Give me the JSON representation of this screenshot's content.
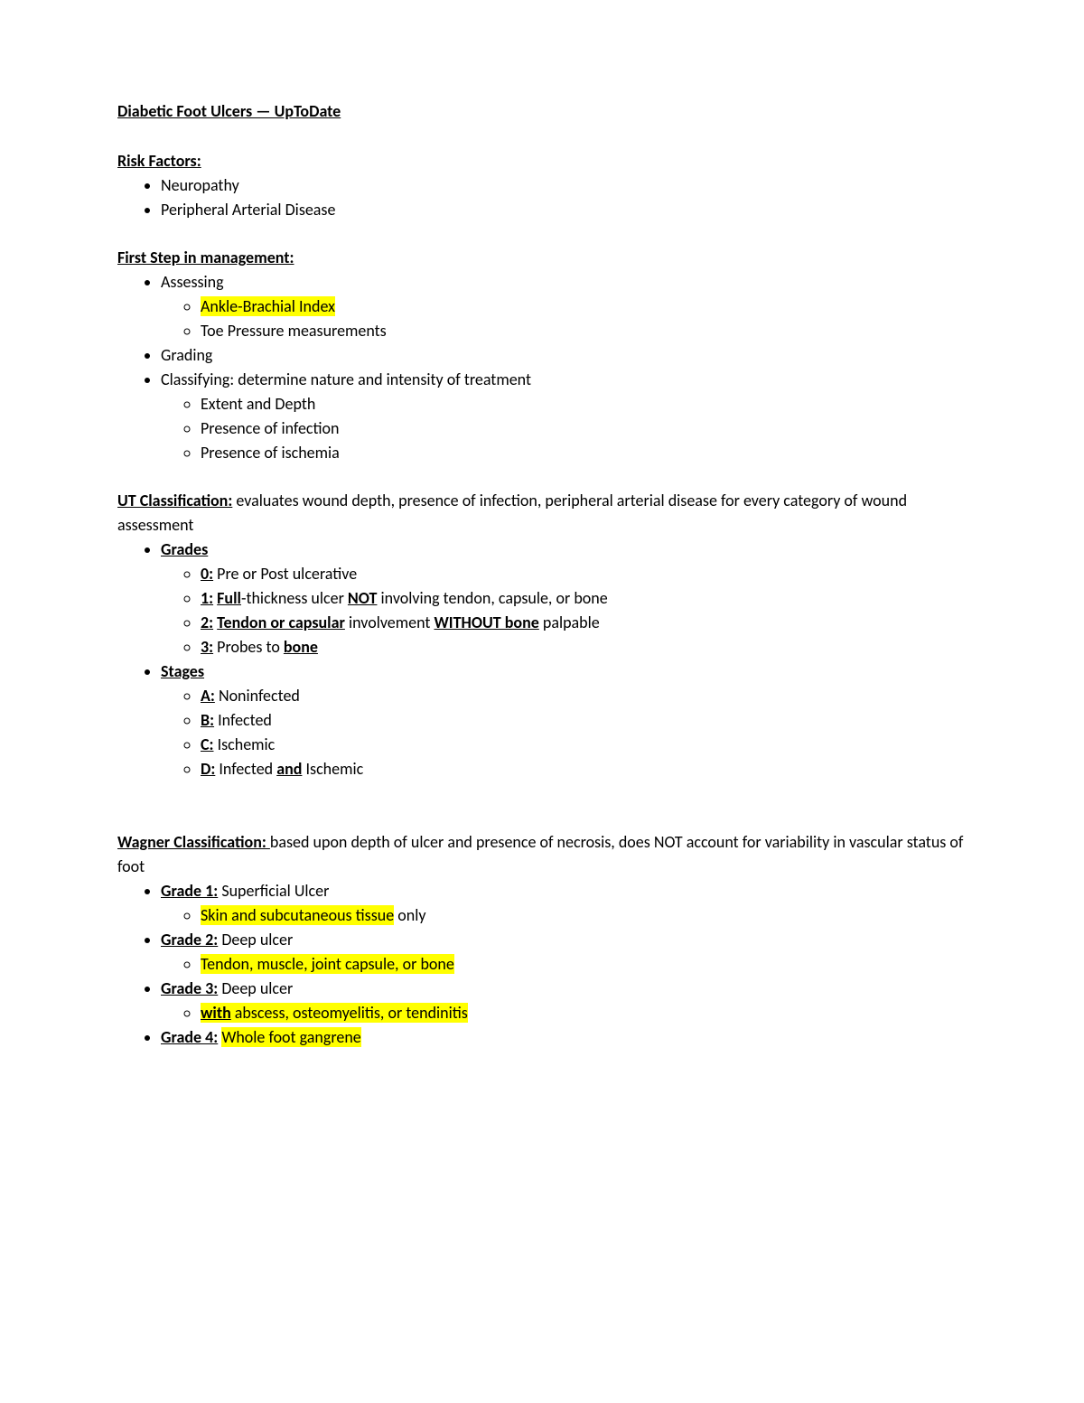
{
  "title": "Diabetic Foot Ulcers — UpToDate",
  "risk": {
    "heading": "Risk Factors:",
    "items": [
      "Neuropathy",
      "Peripheral Arterial Disease"
    ]
  },
  "firstStep": {
    "heading": "First Step in management:",
    "assessing": {
      "label": "Assessing",
      "abi": "Ankle-Brachial Index",
      "toe": "Toe Pressure measurements"
    },
    "grading": "Grading",
    "classifying": {
      "label": "Classifying: determine nature and intensity of treatment",
      "items": [
        "Extent and Depth",
        "Presence of infection",
        "Presence of ischemia"
      ]
    }
  },
  "ut": {
    "heading": "UT Classification:",
    "desc": " evaluates wound depth, presence of infection, peripheral arterial disease for every category of wound assessment",
    "gradesLabel": "Grades",
    "g0_num": "0:",
    "g0_rest": " Pre or Post ulcerative",
    "g1_num": "1:",
    "g1_a": " ",
    "g1_full": "Full",
    "g1_b": "-thickness ulcer ",
    "g1_not": "NOT",
    "g1_c": " involving tendon, capsule, or bone",
    "g2_num": "2:",
    "g2_a": " ",
    "g2_tc": "Tendon or capsular",
    "g2_b": " involvement ",
    "g2_wo": "WITHOUT bone",
    "g2_c": " palpable",
    "g3_num": "3:",
    "g3_a": " Probes to ",
    "g3_bone": "bone",
    "stagesLabel": "Stages",
    "sA_num": "A:",
    "sA_rest": " Noninfected",
    "sB_num": "B:",
    "sB_rest": " Infected",
    "sC_num": "C:",
    "sC_rest": " Ischemic",
    "sD_num": "D:",
    "sD_a": " Infected ",
    "sD_and": "and",
    "sD_b": " Ischemic"
  },
  "wagner": {
    "heading": "Wagner Classification: ",
    "desc": "based upon depth of ulcer and presence of necrosis, does NOT account for variability in vascular status of foot",
    "g1": {
      "label": "Grade 1:",
      "rest": " Superficial Ulcer",
      "sub_hl": "Skin and subcutaneous tissue",
      "sub_rest": " only"
    },
    "g2": {
      "label": "Grade 2:",
      "rest": " Deep ulcer",
      "sub_hl": "Tendon, muscle, joint capsule, or bone"
    },
    "g3": {
      "label": "Grade 3:",
      "rest": " Deep ulcer",
      "sub_with": "with",
      "sub_rest": " abscess, osteomyelitis, or tendinitis"
    },
    "g4": {
      "label": "Grade 4:",
      "rest_sp": " ",
      "rest_hl": "Whole foot gangrene"
    }
  },
  "colors": {
    "highlight": "#ffff00",
    "text": "#000000",
    "bg": "#ffffff"
  },
  "font": {
    "family": "Calibri",
    "size_pt": 12
  }
}
